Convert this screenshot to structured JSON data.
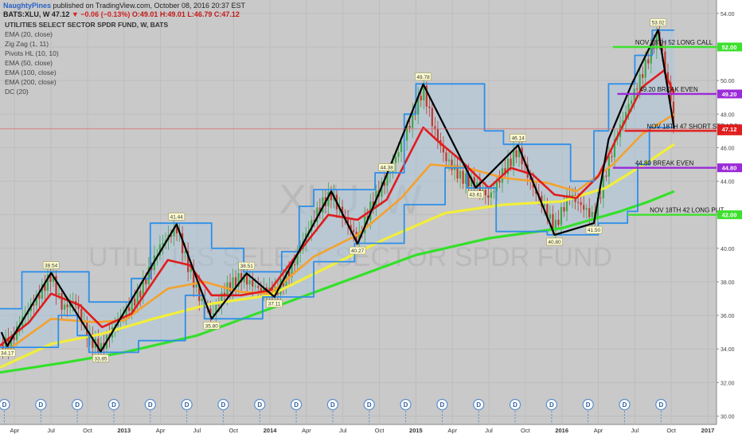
{
  "header": {
    "author": "NaughtyPines",
    "published_text": "published on TradingView.com, October 08, 2016 20:37 EST",
    "symbol_line": "BATS:XLU, W",
    "last_price": "47.12",
    "change": "▼ −0.06 (−0.13%)",
    "ohlc": "O:49.01 H:49.01 L:46.79 C:47.12"
  },
  "indicators": [
    "UTILITIES SELECT SECTOR SPDR FUND, W, BATS",
    "EMA (20, close)",
    "Zig Zag (1, 11)",
    "Pivots HL (10, 10)",
    "EMA (50, close)",
    "EMA (100, close)",
    "EMA (200, close)",
    "DC (20)"
  ],
  "watermark": {
    "symbol": "XLU, W",
    "name": "UTILITIES SELECT SECTOR SPDR FUND"
  },
  "colors": {
    "background": "#c9c9c9",
    "ema20": "#e01c1c",
    "ema50": "#f4a12c",
    "ema100": "#f2ee3a",
    "ema200": "#34e02a",
    "donchian": "#2f8fe8",
    "zigzag": "#000000",
    "call": "#3ee02e",
    "breakeven": "#9b2bd8",
    "straddle": "#e01c1c",
    "put": "#3ee02e",
    "candle_up": "#3fa84a",
    "candle_down": "#c0392b"
  },
  "chart_data": {
    "type": "line",
    "title": "UTILITIES SELECT SECTOR SPDR FUND, W, BATS",
    "xlabel": "",
    "ylabel": "",
    "ylim": [
      29.5,
      54.8
    ],
    "y_ticks": [
      "54.00",
      "52.00",
      "50.00",
      "48.00",
      "46.00",
      "44.00",
      "42.00",
      "40.00",
      "38.00",
      "36.00",
      "34.00",
      "32.00",
      "30.00"
    ],
    "x_ticks": [
      "Apr",
      "Jul",
      "Oct",
      "2013",
      "Apr",
      "Jul",
      "Oct",
      "2014",
      "Apr",
      "Jul",
      "Oct",
      "2015",
      "Apr",
      "Jul",
      "Oct",
      "2016",
      "Apr",
      "Jul",
      "Oct",
      "2017"
    ],
    "x_tick_dates": [
      2012.25,
      2012.5,
      2012.75,
      2013.0,
      2013.25,
      2013.5,
      2013.75,
      2014.0,
      2014.25,
      2014.5,
      2014.75,
      2015.0,
      2015.25,
      2015.5,
      2015.75,
      2016.0,
      2016.25,
      2016.5,
      2016.75,
      2017.0
    ],
    "x_range": [
      2012.15,
      2017.06
    ],
    "dividend_marker_label": "D",
    "dividend_dates": [
      2012.18,
      2012.43,
      2012.68,
      2012.93,
      2013.18,
      2013.43,
      2013.68,
      2013.93,
      2014.18,
      2014.43,
      2014.68,
      2014.93,
      2015.18,
      2015.43,
      2015.68,
      2015.93,
      2016.18,
      2016.43,
      2016.68
    ],
    "series": [
      {
        "name": "Zig Zag (1, 11)",
        "style": "zigzag",
        "points": [
          [
            2012.16,
            35.0
          ],
          [
            2012.2,
            34.17
          ],
          [
            2012.5,
            38.54
          ],
          [
            2012.84,
            33.85
          ],
          [
            2013.36,
            41.44
          ],
          [
            2013.6,
            35.8
          ],
          [
            2013.84,
            38.51
          ],
          [
            2014.03,
            37.11
          ],
          [
            2014.42,
            43.4
          ],
          [
            2014.6,
            40.27
          ],
          [
            2014.8,
            44.38
          ],
          [
            2015.05,
            49.78
          ],
          [
            2015.41,
            43.61
          ],
          [
            2015.7,
            46.14
          ],
          [
            2015.95,
            40.8
          ],
          [
            2016.22,
            41.5
          ],
          [
            2016.32,
            46.5
          ],
          [
            2016.48,
            49.8
          ],
          [
            2016.66,
            53.02
          ],
          [
            2016.77,
            47.12
          ]
        ],
        "labels": [
          {
            "x": 2012.2,
            "y": 34.17,
            "text": "34.17",
            "pos": "below"
          },
          {
            "x": 2012.5,
            "y": 38.54,
            "text": "38.54",
            "pos": "above"
          },
          {
            "x": 2012.84,
            "y": 33.85,
            "text": "33.85",
            "pos": "below"
          },
          {
            "x": 2013.36,
            "y": 41.44,
            "text": "41.44",
            "pos": "above"
          },
          {
            "x": 2013.6,
            "y": 35.8,
            "text": "35.80",
            "pos": "below"
          },
          {
            "x": 2013.84,
            "y": 38.51,
            "text": "38.51",
            "pos": "above"
          },
          {
            "x": 2014.03,
            "y": 37.11,
            "text": "37.11",
            "pos": "below"
          },
          {
            "x": 2014.8,
            "y": 44.38,
            "text": "44.38",
            "pos": "above"
          },
          {
            "x": 2014.6,
            "y": 40.27,
            "text": "40.27",
            "pos": "below"
          },
          {
            "x": 2015.05,
            "y": 49.78,
            "text": "49.78",
            "pos": "above"
          },
          {
            "x": 2015.41,
            "y": 43.61,
            "text": "43.61",
            "pos": "below"
          },
          {
            "x": 2015.7,
            "y": 46.14,
            "text": "46.14",
            "pos": "above"
          },
          {
            "x": 2015.95,
            "y": 40.8,
            "text": "40.80",
            "pos": "below"
          },
          {
            "x": 2016.22,
            "y": 41.5,
            "text": "41.50",
            "pos": "below"
          },
          {
            "x": 2016.66,
            "y": 53.02,
            "text": "53.02",
            "pos": "above"
          }
        ]
      },
      {
        "name": "EMA (20, close)",
        "style": "ema20",
        "points": [
          [
            2012.15,
            34.2
          ],
          [
            2012.35,
            35.6
          ],
          [
            2012.5,
            37.3
          ],
          [
            2012.7,
            36.6
          ],
          [
            2012.85,
            35.3
          ],
          [
            2013.05,
            36.1
          ],
          [
            2013.3,
            39.3
          ],
          [
            2013.45,
            39.0
          ],
          [
            2013.6,
            37.2
          ],
          [
            2013.8,
            37.2
          ],
          [
            2014.0,
            37.5
          ],
          [
            2014.2,
            39.8
          ],
          [
            2014.4,
            42.0
          ],
          [
            2014.6,
            41.7
          ],
          [
            2014.8,
            42.9
          ],
          [
            2014.95,
            45.5
          ],
          [
            2015.05,
            47.2
          ],
          [
            2015.15,
            46.4
          ],
          [
            2015.3,
            45.3
          ],
          [
            2015.5,
            43.6
          ],
          [
            2015.65,
            44.8
          ],
          [
            2015.8,
            44.4
          ],
          [
            2015.95,
            43.2
          ],
          [
            2016.1,
            43.0
          ],
          [
            2016.25,
            44.3
          ],
          [
            2016.4,
            47.0
          ],
          [
            2016.55,
            49.6
          ],
          [
            2016.7,
            50.6
          ],
          [
            2016.77,
            49.2
          ]
        ]
      },
      {
        "name": "EMA (50, close)",
        "style": "ema50",
        "points": [
          [
            2012.15,
            33.6
          ],
          [
            2012.5,
            35.8
          ],
          [
            2012.8,
            35.6
          ],
          [
            2013.0,
            35.7
          ],
          [
            2013.3,
            37.6
          ],
          [
            2013.55,
            38.0
          ],
          [
            2013.8,
            37.4
          ],
          [
            2014.0,
            37.3
          ],
          [
            2014.3,
            39.5
          ],
          [
            2014.6,
            40.8
          ],
          [
            2014.9,
            43.0
          ],
          [
            2015.1,
            45.0
          ],
          [
            2015.35,
            44.8
          ],
          [
            2015.6,
            44.2
          ],
          [
            2015.9,
            43.9
          ],
          [
            2016.1,
            43.4
          ],
          [
            2016.35,
            45.0
          ],
          [
            2016.55,
            46.8
          ],
          [
            2016.77,
            48.0
          ]
        ]
      },
      {
        "name": "EMA (100, close)",
        "style": "ema100",
        "points": [
          [
            2012.15,
            32.9
          ],
          [
            2012.5,
            34.3
          ],
          [
            2012.85,
            34.9
          ],
          [
            2013.2,
            35.8
          ],
          [
            2013.6,
            36.7
          ],
          [
            2014.0,
            37.2
          ],
          [
            2014.4,
            38.9
          ],
          [
            2014.8,
            40.6
          ],
          [
            2015.2,
            42.1
          ],
          [
            2015.6,
            42.6
          ],
          [
            2016.0,
            42.8
          ],
          [
            2016.3,
            43.6
          ],
          [
            2016.6,
            45.2
          ],
          [
            2016.77,
            46.2
          ]
        ]
      },
      {
        "name": "EMA (200, close)",
        "style": "ema200",
        "points": [
          [
            2012.15,
            32.6
          ],
          [
            2012.6,
            33.2
          ],
          [
            2013.0,
            33.8
          ],
          [
            2013.5,
            34.8
          ],
          [
            2014.0,
            36.4
          ],
          [
            2014.5,
            38.0
          ],
          [
            2015.0,
            39.6
          ],
          [
            2015.5,
            40.6
          ],
          [
            2016.0,
            41.2
          ],
          [
            2016.4,
            42.2
          ],
          [
            2016.6,
            42.8
          ],
          [
            2016.77,
            43.4
          ]
        ]
      },
      {
        "name": "DC (20) upper",
        "style": "dc",
        "step": true,
        "points": [
          [
            2012.15,
            36.4
          ],
          [
            2012.3,
            36.4
          ],
          [
            2012.3,
            38.6
          ],
          [
            2012.76,
            38.6
          ],
          [
            2012.76,
            36.8
          ],
          [
            2013.05,
            36.8
          ],
          [
            2013.05,
            38.2
          ],
          [
            2013.18,
            38.2
          ],
          [
            2013.18,
            41.5
          ],
          [
            2013.6,
            41.5
          ],
          [
            2013.6,
            40.0
          ],
          [
            2013.82,
            40.0
          ],
          [
            2013.82,
            38.6
          ],
          [
            2014.08,
            38.6
          ],
          [
            2014.08,
            39.8
          ],
          [
            2014.2,
            39.8
          ],
          [
            2014.2,
            42.5
          ],
          [
            2014.3,
            42.5
          ],
          [
            2014.3,
            43.5
          ],
          [
            2014.72,
            43.5
          ],
          [
            2014.72,
            44.5
          ],
          [
            2014.92,
            44.5
          ],
          [
            2014.92,
            48.0
          ],
          [
            2015.0,
            48.0
          ],
          [
            2015.0,
            49.8
          ],
          [
            2015.47,
            49.8
          ],
          [
            2015.47,
            47.0
          ],
          [
            2015.6,
            47.0
          ],
          [
            2015.6,
            46.2
          ],
          [
            2016.06,
            46.2
          ],
          [
            2016.06,
            44.0
          ],
          [
            2016.22,
            44.0
          ],
          [
            2016.22,
            47.0
          ],
          [
            2016.32,
            47.0
          ],
          [
            2016.32,
            49.8
          ],
          [
            2016.5,
            49.8
          ],
          [
            2016.5,
            51.5
          ],
          [
            2016.62,
            51.5
          ],
          [
            2016.62,
            53.0
          ],
          [
            2016.77,
            53.0
          ]
        ]
      },
      {
        "name": "DC (20) lower",
        "style": "dc",
        "step": true,
        "points": [
          [
            2012.15,
            34.1
          ],
          [
            2012.55,
            34.1
          ],
          [
            2012.55,
            36.0
          ],
          [
            2012.68,
            36.0
          ],
          [
            2012.68,
            34.8
          ],
          [
            2012.76,
            34.8
          ],
          [
            2012.76,
            33.8
          ],
          [
            2013.1,
            33.8
          ],
          [
            2013.1,
            34.5
          ],
          [
            2013.42,
            34.5
          ],
          [
            2013.42,
            37.2
          ],
          [
            2013.55,
            37.2
          ],
          [
            2013.55,
            35.8
          ],
          [
            2013.95,
            35.8
          ],
          [
            2013.95,
            37.1
          ],
          [
            2014.3,
            37.1
          ],
          [
            2014.3,
            39.2
          ],
          [
            2014.58,
            39.2
          ],
          [
            2014.58,
            40.3
          ],
          [
            2014.92,
            40.3
          ],
          [
            2014.92,
            42.6
          ],
          [
            2015.2,
            42.6
          ],
          [
            2015.2,
            44.8
          ],
          [
            2015.35,
            44.8
          ],
          [
            2015.35,
            43.6
          ],
          [
            2015.55,
            43.6
          ],
          [
            2015.55,
            41.0
          ],
          [
            2015.9,
            41.0
          ],
          [
            2015.9,
            40.8
          ],
          [
            2016.25,
            40.8
          ],
          [
            2016.25,
            41.5
          ],
          [
            2016.45,
            41.5
          ],
          [
            2016.45,
            42.2
          ],
          [
            2016.52,
            42.2
          ],
          [
            2016.52,
            45.0
          ],
          [
            2016.6,
            45.0
          ],
          [
            2016.6,
            47.2
          ],
          [
            2016.77,
            47.2
          ]
        ]
      }
    ],
    "levels": [
      {
        "value": 52.0,
        "label": "NOV 18TH 52 LONG CALL",
        "axis_label": "52.00",
        "style": "call",
        "x_start": 2016.35
      },
      {
        "value": 49.2,
        "label": "49.20 BREAK EVEN",
        "axis_label": "49.20",
        "style": "breakeven",
        "x_start": 2016.38
      },
      {
        "value": 47.0,
        "label": "NOV 18TH 47 SHORT STRADDLE",
        "axis_label": "47.00",
        "style": "straddle",
        "x_start": 2016.43
      },
      {
        "value": 44.8,
        "label": "44.80 BREAK EVEN",
        "axis_label": "44.80",
        "style": "breakeven",
        "x_start": 2016.35
      },
      {
        "value": 42.0,
        "label": "NOV 18TH 42 LONG PUT",
        "axis_label": "42.00",
        "style": "put",
        "x_start": 2016.45
      }
    ],
    "last_price": {
      "value": 47.12,
      "label": "47.12"
    },
    "candles_close_path": [
      [
        2012.15,
        34.4
      ],
      [
        2012.22,
        34.3
      ],
      [
        2012.3,
        35.8
      ],
      [
        2012.4,
        37.0
      ],
      [
        2012.5,
        38.4
      ],
      [
        2012.58,
        36.4
      ],
      [
        2012.66,
        36.9
      ],
      [
        2012.76,
        34.6
      ],
      [
        2012.84,
        34.0
      ],
      [
        2012.95,
        35.6
      ],
      [
        2013.1,
        37.2
      ],
      [
        2013.25,
        40.2
      ],
      [
        2013.36,
        41.2
      ],
      [
        2013.45,
        38.6
      ],
      [
        2013.52,
        37.0
      ],
      [
        2013.6,
        36.0
      ],
      [
        2013.7,
        37.6
      ],
      [
        2013.8,
        38.3
      ],
      [
        2013.92,
        37.6
      ],
      [
        2014.03,
        37.3
      ],
      [
        2014.15,
        38.8
      ],
      [
        2014.25,
        40.9
      ],
      [
        2014.35,
        42.6
      ],
      [
        2014.42,
        43.2
      ],
      [
        2014.5,
        41.9
      ],
      [
        2014.6,
        40.5
      ],
      [
        2014.7,
        42.7
      ],
      [
        2014.8,
        44.2
      ],
      [
        2014.9,
        46.2
      ],
      [
        2015.0,
        48.4
      ],
      [
        2015.05,
        49.5
      ],
      [
        2015.12,
        47.2
      ],
      [
        2015.2,
        45.4
      ],
      [
        2015.3,
        44.3
      ],
      [
        2015.41,
        43.8
      ],
      [
        2015.5,
        43.0
      ],
      [
        2015.6,
        44.6
      ],
      [
        2015.7,
        45.9
      ],
      [
        2015.78,
        44.0
      ],
      [
        2015.88,
        42.4
      ],
      [
        2015.95,
        41.2
      ],
      [
        2016.05,
        43.2
      ],
      [
        2016.15,
        42.4
      ],
      [
        2016.22,
        41.8
      ],
      [
        2016.3,
        44.5
      ],
      [
        2016.38,
        46.8
      ],
      [
        2016.46,
        48.6
      ],
      [
        2016.55,
        50.4
      ],
      [
        2016.62,
        52.0
      ],
      [
        2016.66,
        52.8
      ],
      [
        2016.7,
        51.0
      ],
      [
        2016.74,
        49.2
      ],
      [
        2016.77,
        47.12
      ]
    ]
  }
}
